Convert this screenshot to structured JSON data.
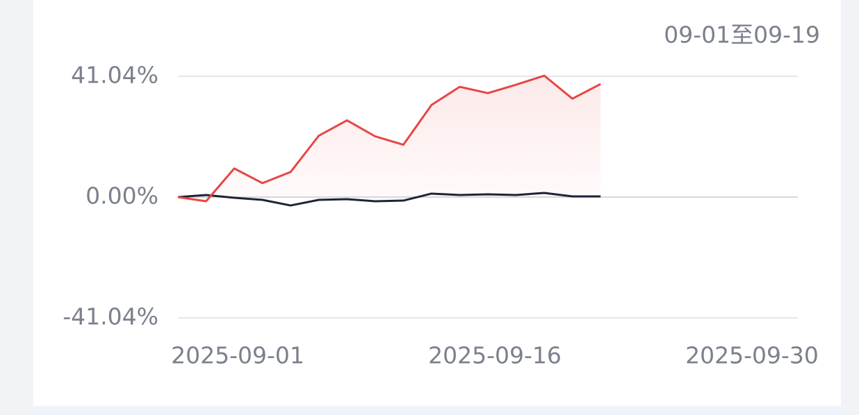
{
  "chart_data": {
    "type": "line",
    "range_label": "09-01至09-19",
    "xticks": [
      "2025-09-01",
      "2025-09-16",
      "2025-09-30"
    ],
    "series": [
      {
        "color": "#e84545",
        "area": true,
        "values": [
          0,
          -1.42,
          9.73,
          4.74,
          8.54,
          20.87,
          26.09,
          20.64,
          17.79,
          31.31,
          37.48,
          35.34,
          38.19,
          41.27,
          33.45,
          38.43
        ]
      },
      {
        "color": "#1f2336",
        "area": false,
        "values": [
          0,
          0.71,
          -0.24,
          -0.95,
          -2.85,
          -0.95,
          -0.71,
          -1.42,
          -1.19,
          1.19,
          0.71,
          0.95,
          0.71,
          1.42,
          0.24,
          0.24
        ]
      }
    ],
    "ylim": [
      -41.04,
      41.04
    ],
    "yticks": [
      {
        "value": 41.04,
        "label": "41.04%"
      },
      {
        "value": 0,
        "label": "0.00%"
      },
      {
        "value": -41.04,
        "label": "-41.04%"
      }
    ],
    "grid": true
  }
}
